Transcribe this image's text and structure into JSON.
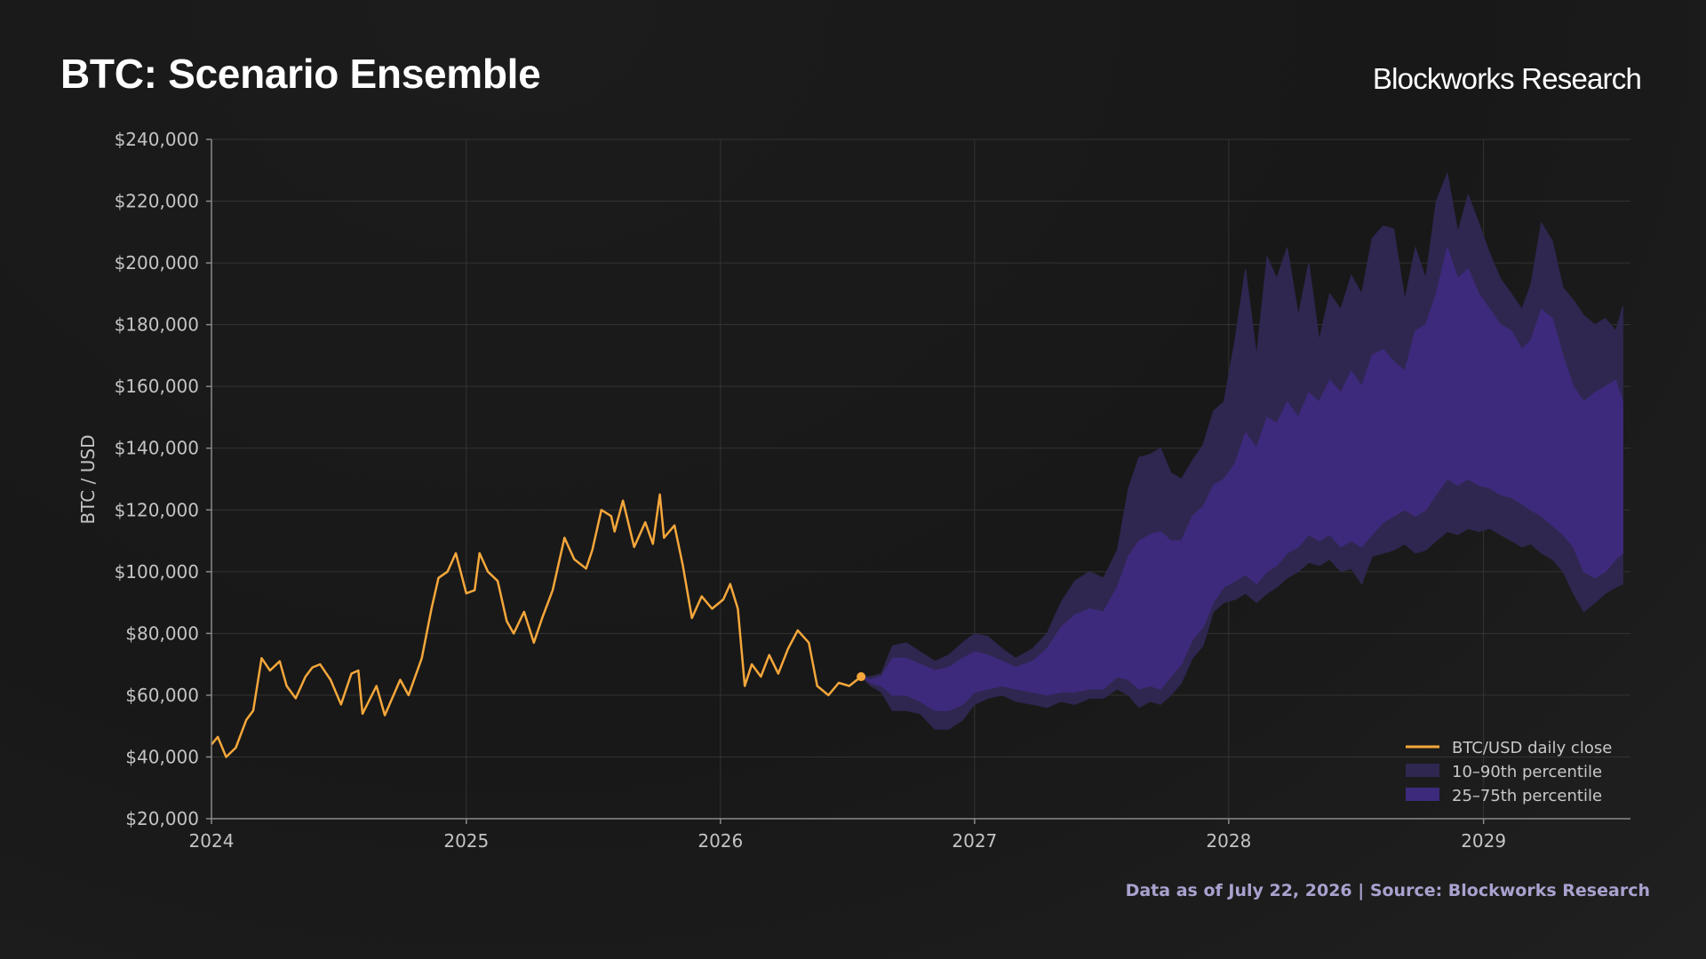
{
  "header": {
    "title": "BTC: Scenario Ensemble",
    "brand": "Blockworks Research"
  },
  "footer": {
    "note": "Data as of July 22, 2026 | Source: Blockworks Research"
  },
  "colors": {
    "price_line": "#f5a73b",
    "band_outer": "#2f2750",
    "band_inner": "#3e2a7c",
    "grid": "#333333",
    "axis": "#8a8a8a"
  },
  "chart_data": {
    "type": "area",
    "title": "BTC: Scenario Ensemble",
    "xlabel": "",
    "ylabel": "BTC / USD",
    "xlim": [
      "2024-01-01",
      "2029-07-31"
    ],
    "ylim": [
      20000,
      240000
    ],
    "x_ticks": [
      "2024",
      "2025",
      "2026",
      "2027",
      "2028",
      "2029"
    ],
    "y_ticks": [
      "$20,000",
      "$40,000",
      "$60,000",
      "$80,000",
      "$100,000",
      "$120,000",
      "$140,000",
      "$160,000",
      "$180,000",
      "$200,000",
      "$220,000",
      "$240,000"
    ],
    "grid": true,
    "legend_position": "bottom-right",
    "legend": [
      "BTC/USD daily close",
      "10–90th percentile",
      "25–75th percentile"
    ],
    "series": [
      {
        "name": "BTC/USD daily close",
        "kind": "line",
        "points": [
          [
            "2024-01-01",
            44000
          ],
          [
            "2024-01-10",
            46500
          ],
          [
            "2024-01-22",
            40000
          ],
          [
            "2024-02-05",
            43000
          ],
          [
            "2024-02-20",
            52000
          ],
          [
            "2024-03-01",
            55000
          ],
          [
            "2024-03-13",
            72000
          ],
          [
            "2024-03-25",
            68000
          ],
          [
            "2024-04-08",
            71000
          ],
          [
            "2024-04-18",
            63000
          ],
          [
            "2024-05-01",
            59000
          ],
          [
            "2024-05-15",
            66000
          ],
          [
            "2024-05-25",
            69000
          ],
          [
            "2024-06-05",
            70000
          ],
          [
            "2024-06-20",
            65000
          ],
          [
            "2024-07-05",
            57000
          ],
          [
            "2024-07-20",
            67000
          ],
          [
            "2024-07-30",
            68000
          ],
          [
            "2024-08-05",
            54000
          ],
          [
            "2024-08-25",
            63000
          ],
          [
            "2024-09-06",
            53500
          ],
          [
            "2024-09-28",
            65000
          ],
          [
            "2024-10-10",
            60000
          ],
          [
            "2024-10-29",
            72000
          ],
          [
            "2024-11-12",
            88000
          ],
          [
            "2024-11-22",
            98000
          ],
          [
            "2024-12-05",
            100000
          ],
          [
            "2024-12-17",
            106000
          ],
          [
            "2025-01-01",
            93000
          ],
          [
            "2025-01-13",
            94000
          ],
          [
            "2025-01-20",
            106000
          ],
          [
            "2025-02-01",
            100000
          ],
          [
            "2025-02-15",
            97000
          ],
          [
            "2025-02-28",
            84000
          ],
          [
            "2025-03-10",
            80000
          ],
          [
            "2025-03-25",
            87000
          ],
          [
            "2025-04-08",
            77000
          ],
          [
            "2025-04-20",
            85000
          ],
          [
            "2025-05-05",
            94000
          ],
          [
            "2025-05-22",
            111000
          ],
          [
            "2025-06-05",
            104000
          ],
          [
            "2025-06-22",
            101000
          ],
          [
            "2025-07-01",
            107000
          ],
          [
            "2025-07-14",
            120000
          ],
          [
            "2025-07-28",
            118000
          ],
          [
            "2025-08-02",
            113000
          ],
          [
            "2025-08-14",
            123000
          ],
          [
            "2025-08-30",
            108000
          ],
          [
            "2025-09-15",
            116000
          ],
          [
            "2025-09-26",
            109000
          ],
          [
            "2025-10-06",
            125000
          ],
          [
            "2025-10-12",
            111000
          ],
          [
            "2025-10-27",
            115000
          ],
          [
            "2025-11-08",
            102000
          ],
          [
            "2025-11-21",
            85000
          ],
          [
            "2025-12-05",
            92000
          ],
          [
            "2025-12-20",
            88000
          ],
          [
            "2026-01-05",
            91000
          ],
          [
            "2026-01-15",
            96000
          ],
          [
            "2026-01-26",
            88000
          ],
          [
            "2026-02-05",
            63000
          ],
          [
            "2026-02-15",
            70000
          ],
          [
            "2026-02-28",
            66000
          ],
          [
            "2026-03-12",
            73000
          ],
          [
            "2026-03-25",
            67000
          ],
          [
            "2026-04-08",
            75000
          ],
          [
            "2026-04-22",
            81000
          ],
          [
            "2026-05-08",
            77000
          ],
          [
            "2026-05-20",
            63000
          ],
          [
            "2026-06-05",
            60000
          ],
          [
            "2026-06-20",
            64000
          ],
          [
            "2026-07-05",
            63000
          ],
          [
            "2026-07-22",
            66000
          ]
        ]
      },
      {
        "name": "10–90th percentile",
        "kind": "band",
        "points": [
          [
            "2026-07-22",
            66000,
            66000
          ],
          [
            "2026-08-05",
            63000,
            66000
          ],
          [
            "2026-08-20",
            61000,
            67000
          ],
          [
            "2026-09-05",
            55000,
            76000
          ],
          [
            "2026-09-25",
            55000,
            77000
          ],
          [
            "2026-10-15",
            54000,
            74000
          ],
          [
            "2026-11-05",
            49000,
            71000
          ],
          [
            "2026-11-25",
            49000,
            73000
          ],
          [
            "2026-12-15",
            52000,
            77000
          ],
          [
            "2027-01-01",
            57000,
            80000
          ],
          [
            "2027-01-20",
            59000,
            79000
          ],
          [
            "2027-02-10",
            60000,
            75000
          ],
          [
            "2027-03-01",
            58000,
            72000
          ],
          [
            "2027-03-25",
            57000,
            75000
          ],
          [
            "2027-04-15",
            56000,
            80000
          ],
          [
            "2027-05-05",
            58000,
            90000
          ],
          [
            "2027-05-25",
            57000,
            97000
          ],
          [
            "2027-06-15",
            59000,
            100000
          ],
          [
            "2027-07-05",
            59000,
            98000
          ],
          [
            "2027-07-25",
            62000,
            107000
          ],
          [
            "2027-08-10",
            60000,
            127000
          ],
          [
            "2027-08-25",
            56000,
            137000
          ],
          [
            "2027-09-10",
            58000,
            138000
          ],
          [
            "2027-09-25",
            57000,
            140000
          ],
          [
            "2027-10-10",
            60000,
            132000
          ],
          [
            "2027-10-25",
            64000,
            130000
          ],
          [
            "2027-11-10",
            72000,
            136000
          ],
          [
            "2027-11-25",
            76000,
            141000
          ],
          [
            "2027-12-10",
            87000,
            152000
          ],
          [
            "2027-12-25",
            90000,
            155000
          ],
          [
            "2028-01-10",
            91000,
            175000
          ],
          [
            "2028-01-25",
            93000,
            198000
          ],
          [
            "2028-02-10",
            90000,
            170000
          ],
          [
            "2028-02-25",
            93000,
            202000
          ],
          [
            "2028-03-10",
            95000,
            195000
          ],
          [
            "2028-03-25",
            98000,
            205000
          ],
          [
            "2028-04-10",
            100000,
            183000
          ],
          [
            "2028-04-25",
            103000,
            200000
          ],
          [
            "2028-05-10",
            102000,
            175000
          ],
          [
            "2028-05-25",
            104000,
            190000
          ],
          [
            "2028-06-10",
            100000,
            185000
          ],
          [
            "2028-06-25",
            101000,
            196000
          ],
          [
            "2028-07-10",
            96000,
            190000
          ],
          [
            "2028-07-25",
            105000,
            208000
          ],
          [
            "2028-08-10",
            106000,
            212000
          ],
          [
            "2028-08-25",
            107000,
            211000
          ],
          [
            "2028-09-10",
            109000,
            188000
          ],
          [
            "2028-09-25",
            106000,
            205000
          ],
          [
            "2028-10-10",
            107000,
            195000
          ],
          [
            "2028-10-25",
            110000,
            220000
          ],
          [
            "2028-11-10",
            113000,
            229000
          ],
          [
            "2028-11-25",
            112000,
            210000
          ],
          [
            "2028-12-10",
            114000,
            222000
          ],
          [
            "2028-12-25",
            113000,
            213000
          ],
          [
            "2029-01-10",
            114000,
            203000
          ],
          [
            "2029-01-25",
            112000,
            195000
          ],
          [
            "2029-02-10",
            110000,
            190000
          ],
          [
            "2029-02-25",
            108000,
            185000
          ],
          [
            "2029-03-10",
            109000,
            193000
          ],
          [
            "2029-03-25",
            106000,
            213000
          ],
          [
            "2029-04-10",
            104000,
            207000
          ],
          [
            "2029-04-25",
            100000,
            192000
          ],
          [
            "2029-05-10",
            93000,
            188000
          ],
          [
            "2029-05-25",
            87000,
            183000
          ],
          [
            "2029-06-10",
            90000,
            180000
          ],
          [
            "2029-06-25",
            93000,
            182000
          ],
          [
            "2029-07-10",
            95000,
            178000
          ],
          [
            "2029-07-20",
            96000,
            186000
          ]
        ]
      },
      {
        "name": "25–75th percentile",
        "kind": "band",
        "points": [
          [
            "2026-07-22",
            66000,
            66000
          ],
          [
            "2026-08-05",
            64000,
            65000
          ],
          [
            "2026-08-20",
            63000,
            66000
          ],
          [
            "2026-09-05",
            60000,
            72000
          ],
          [
            "2026-09-25",
            60000,
            72000
          ],
          [
            "2026-10-15",
            58000,
            70000
          ],
          [
            "2026-11-05",
            55000,
            68000
          ],
          [
            "2026-11-25",
            55000,
            69000
          ],
          [
            "2026-12-15",
            57000,
            72000
          ],
          [
            "2027-01-01",
            61000,
            74000
          ],
          [
            "2027-01-20",
            62000,
            73000
          ],
          [
            "2027-02-10",
            63000,
            71000
          ],
          [
            "2027-03-01",
            62000,
            69000
          ],
          [
            "2027-03-25",
            61000,
            71000
          ],
          [
            "2027-04-15",
            60000,
            75000
          ],
          [
            "2027-05-05",
            61000,
            82000
          ],
          [
            "2027-05-25",
            61000,
            86000
          ],
          [
            "2027-06-15",
            62000,
            88000
          ],
          [
            "2027-07-05",
            62000,
            87000
          ],
          [
            "2027-07-25",
            66000,
            95000
          ],
          [
            "2027-08-10",
            65000,
            105000
          ],
          [
            "2027-08-25",
            62000,
            110000
          ],
          [
            "2027-09-10",
            63000,
            112000
          ],
          [
            "2027-09-25",
            62000,
            113000
          ],
          [
            "2027-10-10",
            66000,
            110000
          ],
          [
            "2027-10-25",
            70000,
            110000
          ],
          [
            "2027-11-10",
            78000,
            118000
          ],
          [
            "2027-11-25",
            82000,
            121000
          ],
          [
            "2027-12-10",
            90000,
            128000
          ],
          [
            "2027-12-25",
            95000,
            130000
          ],
          [
            "2028-01-10",
            97000,
            135000
          ],
          [
            "2028-01-25",
            99000,
            145000
          ],
          [
            "2028-02-10",
            96000,
            140000
          ],
          [
            "2028-02-25",
            100000,
            150000
          ],
          [
            "2028-03-10",
            102000,
            148000
          ],
          [
            "2028-03-25",
            106000,
            155000
          ],
          [
            "2028-04-10",
            108000,
            150000
          ],
          [
            "2028-04-25",
            112000,
            158000
          ],
          [
            "2028-05-10",
            110000,
            155000
          ],
          [
            "2028-05-25",
            112000,
            162000
          ],
          [
            "2028-06-10",
            108000,
            158000
          ],
          [
            "2028-06-25",
            110000,
            165000
          ],
          [
            "2028-07-10",
            108000,
            160000
          ],
          [
            "2028-07-25",
            112000,
            170000
          ],
          [
            "2028-08-10",
            116000,
            172000
          ],
          [
            "2028-08-25",
            118000,
            168000
          ],
          [
            "2028-09-10",
            120000,
            165000
          ],
          [
            "2028-09-25",
            118000,
            178000
          ],
          [
            "2028-10-10",
            120000,
            180000
          ],
          [
            "2028-10-25",
            125000,
            190000
          ],
          [
            "2028-11-10",
            130000,
            205000
          ],
          [
            "2028-11-25",
            128000,
            195000
          ],
          [
            "2028-12-10",
            130000,
            198000
          ],
          [
            "2028-12-25",
            128000,
            190000
          ],
          [
            "2029-01-10",
            127000,
            185000
          ],
          [
            "2029-01-25",
            125000,
            180000
          ],
          [
            "2029-02-10",
            124000,
            178000
          ],
          [
            "2029-02-25",
            122000,
            172000
          ],
          [
            "2029-03-10",
            120000,
            175000
          ],
          [
            "2029-03-25",
            118000,
            185000
          ],
          [
            "2029-04-10",
            115000,
            182000
          ],
          [
            "2029-04-25",
            112000,
            170000
          ],
          [
            "2029-05-10",
            108000,
            160000
          ],
          [
            "2029-05-25",
            100000,
            155000
          ],
          [
            "2029-06-10",
            98000,
            158000
          ],
          [
            "2029-06-25",
            100000,
            160000
          ],
          [
            "2029-07-10",
            104000,
            162000
          ],
          [
            "2029-07-20",
            106000,
            155000
          ]
        ]
      }
    ]
  }
}
